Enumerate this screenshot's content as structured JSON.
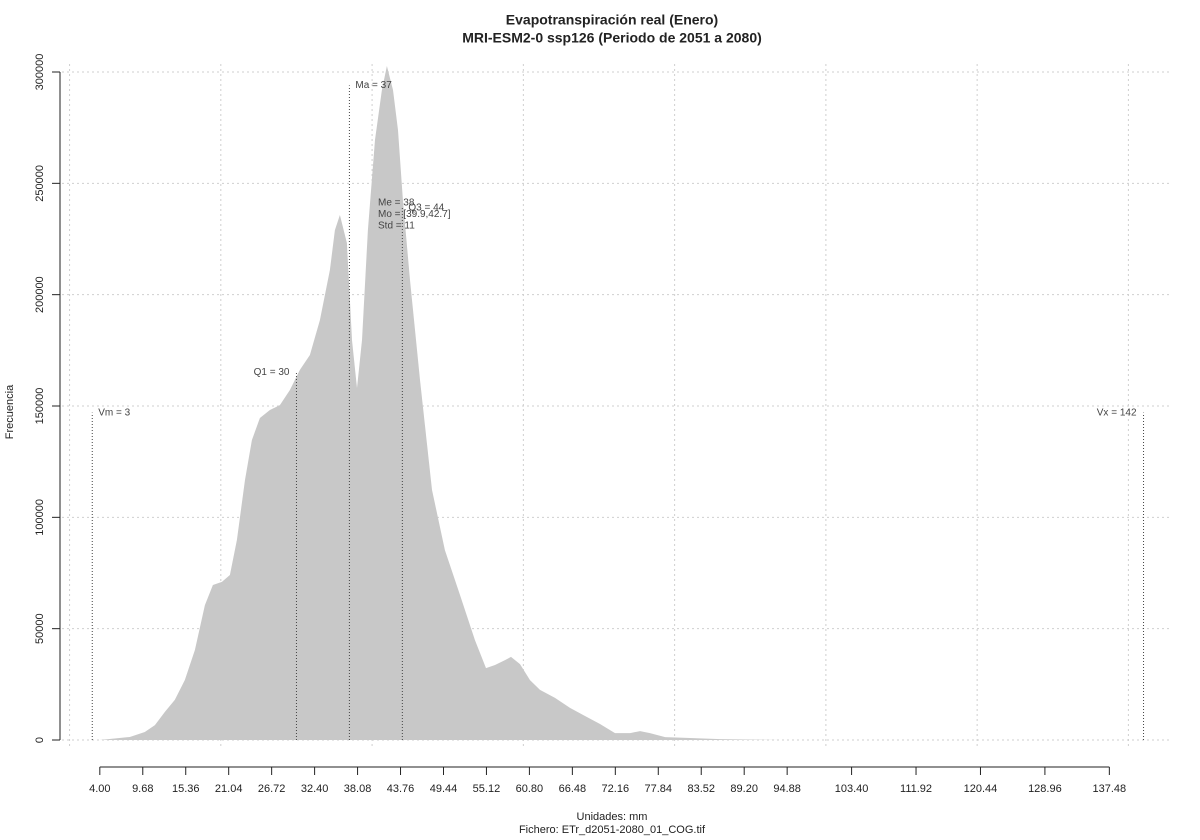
{
  "chart_data": {
    "type": "area",
    "title": "Evapotranspiración real (Enero)",
    "subtitle": "MRI-ESM2-0 ssp126 (Periodo de 2051 a 2080)",
    "xlabel": "Unidades: mm",
    "caption": "Fichero: ETr_d2051-2080_01_COG.tif",
    "ylabel": "Frecuencia",
    "color": "#c8c8c8",
    "x": [
      4,
      7.97,
      9.95,
      11.28,
      12.6,
      13.92,
      15.24,
      16.57,
      17.89,
      18.95,
      20.14,
      21.2,
      22.13,
      23.19,
      24.11,
      25.16,
      26.49,
      27.81,
      29.13,
      30.46,
      31.78,
      33.1,
      34.42,
      35.08,
      35.75,
      36.67,
      37.34,
      38,
      38.66,
      39.45,
      40.38,
      41.3,
      41.96,
      42.76,
      43.42,
      44.08,
      45.01,
      46.33,
      47.92,
      49.63,
      51.62,
      53.6,
      55.06,
      56.25,
      57.57,
      58.37,
      59.56,
      60.88,
      62.2,
      64.19,
      66.17,
      68.15,
      70.14,
      72.12,
      74.11,
      75.43,
      76.75,
      78.74,
      82.04,
      86.01,
      93.95,
      140.24
    ],
    "values": [
      0,
      1350,
      3600,
      6700,
      12600,
      18000,
      26900,
      40400,
      60600,
      69600,
      71000,
      74100,
      89800,
      116800,
      134700,
      144600,
      148200,
      150400,
      157200,
      166200,
      172900,
      188600,
      211100,
      229000,
      235800,
      223200,
      179600,
      158100,
      179600,
      229000,
      269500,
      291900,
      302700,
      291900,
      273900,
      242500,
      206600,
      161700,
      112300,
      85300,
      65100,
      44900,
      32300,
      33700,
      35900,
      37300,
      34100,
      26900,
      22500,
      18900,
      14400,
      10800,
      7200,
      3100,
      3100,
      4000,
      3100,
      1300,
      900,
      400,
      0,
      0
    ],
    "xlim": [
      -1,
      145.5
    ],
    "ylim": [
      0,
      300000
    ],
    "yticks": [
      0,
      50000,
      100000,
      150000,
      200000,
      250000,
      300000
    ],
    "xticks": [
      {
        "value": 4,
        "label": "4.00"
      },
      9.68,
      15.36,
      21.04,
      26.72,
      {
        "value": 32.4,
        "label": "32.40"
      },
      38.08,
      43.76,
      49.44,
      55.12,
      {
        "value": 60.8,
        "label": "60.80"
      },
      66.48,
      72.16,
      77.84,
      83.52,
      {
        "value": 89.2,
        "label": "89.20"
      },
      94.88,
      {
        "value": 103.4,
        "label": "103.40"
      },
      111.92,
      120.44,
      128.96,
      137.48
    ],
    "xgrid": [
      0,
      20,
      40,
      60,
      80,
      100,
      120,
      140
    ],
    "grid": true,
    "markers": [
      {
        "label": "Vm = 3",
        "x": 3,
        "y": 147000
      },
      {
        "label": "Q1 = 30",
        "x": 30,
        "y": 165000
      },
      {
        "label": "Ma = 37",
        "x": 37,
        "y": 294000
      },
      {
        "label": "Q3 = 44",
        "x": 44,
        "y": 239000
      },
      {
        "label": "Vx = 142",
        "x": 142,
        "y": 147000
      }
    ],
    "notes": [
      "Me = 38",
      "Mo = [39.9,42.7]",
      "Std = 11"
    ]
  }
}
